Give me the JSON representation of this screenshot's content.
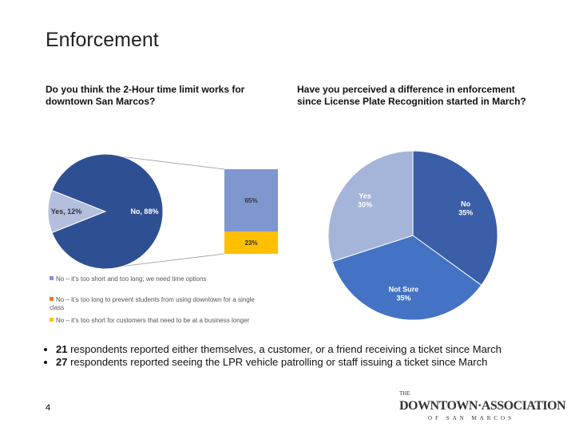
{
  "slide_title": "Enforcement",
  "chart_data": [
    {
      "type": "pie",
      "title": "Do you think the 2-Hour time limit works for downtown San Marcos?",
      "values": [
        12,
        88
      ],
      "value_labels": [
        "Yes, 12%",
        "No, 88%"
      ],
      "colors": [
        "#b4bedd",
        "#2f4f93"
      ],
      "series": [
        {
          "name": "No – it’s too short and too long; we need time options",
          "color": "#7f96cf",
          "values": [
            65
          ],
          "value_labels": [
            "65%"
          ]
        },
        {
          "name": "No – it’s too long to prevent students from using downtown for a single class",
          "color": "#e97c30",
          "values": [
            0
          ]
        },
        {
          "name": "No – it’s too short for customers that need to be at a business longer",
          "color": "#ffc000",
          "values": [
            23
          ],
          "value_labels": [
            "23%"
          ]
        }
      ]
    },
    {
      "type": "pie",
      "title": "Have you perceived a difference in enforcement since License Plate Recognition started in March?",
      "categories": [
        "No",
        "Not Sure",
        "Yes"
      ],
      "values": [
        35,
        35,
        30
      ],
      "value_labels": [
        "35%",
        "35%",
        "30%"
      ],
      "colors": [
        "#3a5ea8",
        "#4472c4",
        "#a5b4d9"
      ]
    }
  ],
  "bullets": [
    {
      "count": 21,
      "text": "respondents reported either themselves, a customer, or a friend receiving a ticket since March"
    },
    {
      "count": 27,
      "text": "respondents reported seeing the LPR vehicle patrolling or staff issuing a ticket since March"
    }
  ],
  "page_number": "4",
  "logo": {
    "top": "THE",
    "name": "DOWNTOWN·ASSOCIATION",
    "sub": "OF SAN MARCOS"
  }
}
